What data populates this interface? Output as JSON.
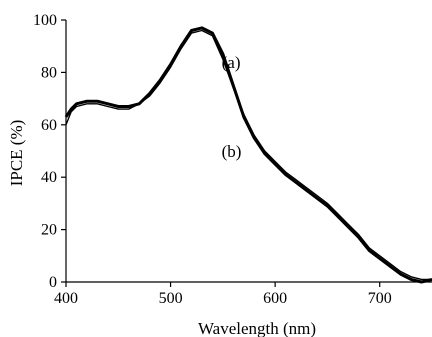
{
  "chart_data": {
    "type": "line",
    "title": "",
    "xlabel": "Wavelength (nm)",
    "ylabel": "IPCE (%)",
    "xlim": [
      400,
      750
    ],
    "ylim": [
      0,
      100
    ],
    "x_ticks": [
      "400",
      "500",
      "600",
      "700"
    ],
    "y_ticks": [
      "0",
      "20",
      "40",
      "60",
      "80",
      "100"
    ],
    "grid": false,
    "legend": "none",
    "annotations": [
      {
        "text": "(a)",
        "x": 545,
        "y": 84
      },
      {
        "text": "(b)",
        "x": 545,
        "y": 50
      }
    ],
    "series": [
      {
        "label": "a",
        "color": "#000000",
        "points": [
          [
            400,
            60
          ],
          [
            405,
            65
          ],
          [
            410,
            67
          ],
          [
            420,
            68
          ],
          [
            430,
            68
          ],
          [
            440,
            67
          ],
          [
            450,
            66
          ],
          [
            460,
            66
          ],
          [
            470,
            68
          ],
          [
            480,
            71
          ],
          [
            490,
            76
          ],
          [
            500,
            82
          ],
          [
            510,
            89
          ],
          [
            520,
            95
          ],
          [
            530,
            96
          ],
          [
            540,
            94
          ],
          [
            550,
            85
          ],
          [
            560,
            74
          ],
          [
            570,
            64
          ],
          [
            580,
            56
          ],
          [
            590,
            50
          ],
          [
            600,
            46
          ],
          [
            610,
            42
          ],
          [
            620,
            39
          ],
          [
            630,
            36
          ],
          [
            640,
            33
          ],
          [
            650,
            30
          ],
          [
            660,
            26
          ],
          [
            670,
            22
          ],
          [
            680,
            18
          ],
          [
            690,
            13
          ],
          [
            700,
            10
          ],
          [
            710,
            7
          ],
          [
            720,
            4
          ],
          [
            730,
            2
          ],
          [
            740,
            1
          ],
          [
            750,
            1
          ]
        ]
      },
      {
        "label": "b",
        "color": "#000000",
        "points": [
          [
            400,
            63
          ],
          [
            405,
            66
          ],
          [
            410,
            68
          ],
          [
            420,
            69
          ],
          [
            430,
            69
          ],
          [
            440,
            68
          ],
          [
            450,
            67
          ],
          [
            460,
            67
          ],
          [
            470,
            68
          ],
          [
            480,
            72
          ],
          [
            490,
            77
          ],
          [
            500,
            83
          ],
          [
            510,
            90
          ],
          [
            520,
            96
          ],
          [
            530,
            97
          ],
          [
            540,
            95
          ],
          [
            550,
            87
          ],
          [
            560,
            75
          ],
          [
            570,
            63
          ],
          [
            580,
            55
          ],
          [
            590,
            49
          ],
          [
            600,
            45
          ],
          [
            610,
            41
          ],
          [
            620,
            38
          ],
          [
            630,
            35
          ],
          [
            640,
            32
          ],
          [
            650,
            29
          ],
          [
            660,
            25
          ],
          [
            670,
            21
          ],
          [
            680,
            17
          ],
          [
            690,
            12
          ],
          [
            700,
            9
          ],
          [
            710,
            6
          ],
          [
            720,
            3
          ],
          [
            730,
            1
          ],
          [
            740,
            0
          ],
          [
            750,
            1
          ]
        ]
      }
    ]
  }
}
